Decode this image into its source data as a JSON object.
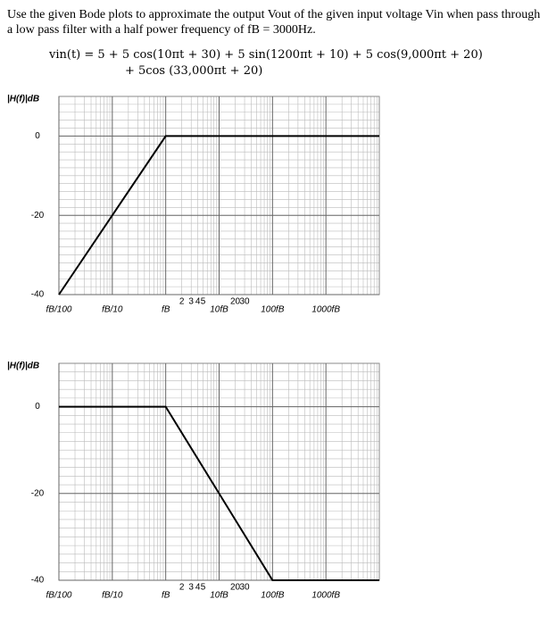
{
  "problem": {
    "text": "Use the given Bode plots to approximate the output Vout of the given input voltage Vin when pass through a low pass filter with a half power frequency of fB = 3000Hz.",
    "equation": [
      "vin(t) = 5 + 5 cos(10πt + 30) + 5 sin(1200πt + 10) + 5 cos(9,000πt + 20)",
      "+ 5cos (33,000πt + 20)"
    ]
  },
  "chart_data": [
    {
      "type": "line",
      "y_label": "|H(f)|dB",
      "log_x": true,
      "grid": true,
      "minor_grid": true,
      "xlim": [
        0.01,
        10000
      ],
      "ylim": [
        -40,
        10
      ],
      "xticks": [
        {
          "value": 0.01,
          "label": "fB/100"
        },
        {
          "value": 0.1,
          "label": "fB/10"
        },
        {
          "value": 1,
          "label": "fB"
        },
        {
          "value": 10,
          "label": "10fB"
        },
        {
          "value": 100,
          "label": "100fB"
        },
        {
          "value": 1000,
          "label": "1000fB"
        }
      ],
      "xminor_ticks": [
        2,
        3,
        4,
        5,
        20,
        30
      ],
      "yticks": [
        0,
        -20,
        -40
      ],
      "series": [
        {
          "color": "#000000",
          "x": [
            0.01,
            1,
            10000
          ],
          "values": [
            -40,
            0,
            0
          ]
        }
      ]
    },
    {
      "type": "line",
      "y_label": "|H(f)|dB",
      "log_x": true,
      "grid": true,
      "minor_grid": true,
      "xlim": [
        0.01,
        10000
      ],
      "ylim": [
        -40,
        10
      ],
      "xticks": [
        {
          "value": 0.01,
          "label": "fB/100"
        },
        {
          "value": 0.1,
          "label": "fB/10"
        },
        {
          "value": 1,
          "label": "fB"
        },
        {
          "value": 10,
          "label": "10fB"
        },
        {
          "value": 100,
          "label": "100fB"
        },
        {
          "value": 1000,
          "label": "1000fB"
        }
      ],
      "xminor_ticks": [
        2,
        3,
        4,
        5,
        20,
        30
      ],
      "yticks": [
        0,
        -20,
        -40
      ],
      "series": [
        {
          "color": "#000000",
          "x": [
            0.01,
            1,
            100,
            10000
          ],
          "values": [
            0,
            0,
            -40,
            -40
          ]
        }
      ]
    }
  ]
}
